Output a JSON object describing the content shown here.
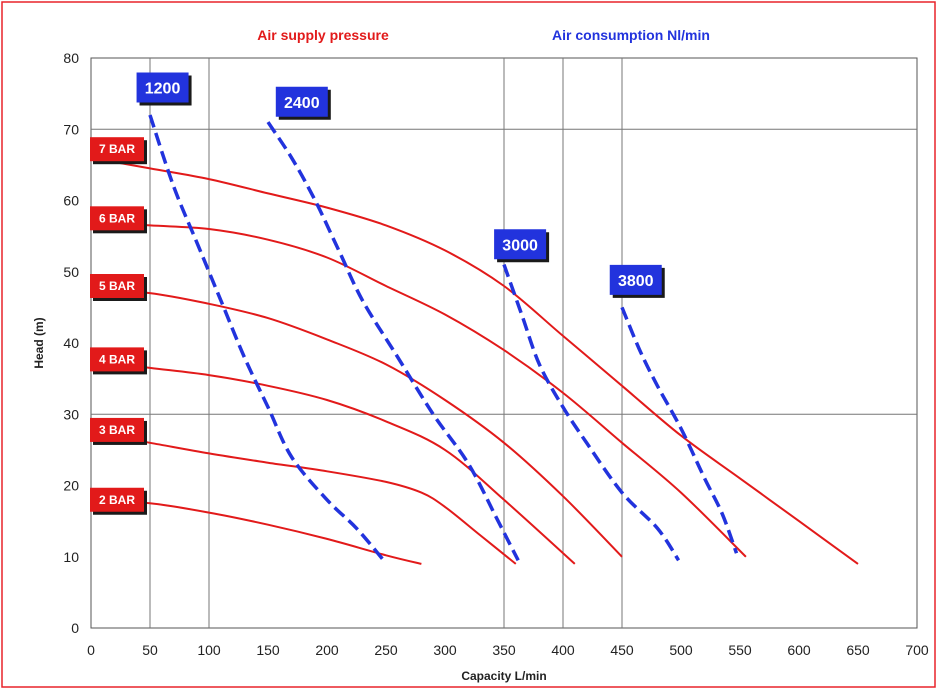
{
  "chart_data": {
    "type": "line",
    "title_pressure": "Air supply pressure",
    "title_consumption": "Air consumption Nl/min",
    "xlabel": "Capacity L/min",
    "ylabel": "Head (m)",
    "xlim": [
      0,
      700
    ],
    "ylim": [
      0,
      80
    ],
    "x_ticks": [
      "0",
      "50",
      "100",
      "150",
      "200",
      "250",
      "300",
      "350",
      "400",
      "450",
      "500",
      "550",
      "600",
      "650",
      "700"
    ],
    "y_ticks": [
      "0",
      "10",
      "20",
      "30",
      "40",
      "50",
      "60",
      "70",
      "80"
    ],
    "grid": {
      "vertical": [
        50,
        100,
        350,
        400,
        450
      ],
      "horizontal": [
        30,
        70
      ]
    },
    "colors": {
      "pressure": "#e21a1a",
      "consumption": "#2233dd",
      "frame": "#e8232a"
    },
    "pressure_series": [
      {
        "name": "2 BAR",
        "x": [
          0,
          50,
          100,
          150,
          200,
          250,
          280
        ],
        "y": [
          18,
          17.5,
          16.2,
          14.5,
          12.5,
          10.2,
          9
        ]
      },
      {
        "name": "3 BAR",
        "x": [
          0,
          50,
          100,
          150,
          200,
          250,
          280,
          300,
          330,
          360
        ],
        "y": [
          27.5,
          26,
          24.5,
          23.2,
          22,
          20.5,
          19,
          17,
          13,
          9
        ]
      },
      {
        "name": "4 BAR",
        "x": [
          0,
          50,
          100,
          150,
          200,
          250,
          300,
          350,
          410
        ],
        "y": [
          37.5,
          36.5,
          35.5,
          34,
          32,
          29,
          25,
          18,
          9
        ]
      },
      {
        "name": "5 BAR",
        "x": [
          0,
          50,
          100,
          150,
          200,
          250,
          300,
          350,
          400,
          450
        ],
        "y": [
          47.5,
          47,
          45.5,
          43.5,
          40.5,
          37,
          32,
          26,
          18.5,
          10
        ]
      },
      {
        "name": "6 BAR",
        "x": [
          0,
          50,
          100,
          150,
          200,
          250,
          300,
          350,
          400,
          450,
          500,
          555
        ],
        "y": [
          57,
          56.5,
          56,
          54.5,
          52,
          48,
          44,
          39,
          33,
          26,
          19,
          10
        ]
      },
      {
        "name": "7 BAR",
        "x": [
          0,
          50,
          100,
          150,
          200,
          250,
          300,
          350,
          400,
          450,
          500,
          550,
          600,
          650
        ],
        "y": [
          66,
          64.5,
          63,
          61,
          59,
          56.5,
          53,
          48,
          41,
          34,
          27,
          21,
          15,
          9
        ]
      }
    ],
    "consumption_series": [
      {
        "name": "1200",
        "x": [
          50,
          70,
          90,
          110,
          130,
          150,
          170,
          200,
          225,
          248
        ],
        "y": [
          72,
          62,
          54,
          46,
          38,
          31,
          24,
          18,
          14,
          9.5
        ]
      },
      {
        "name": "2400",
        "x": [
          150,
          170,
          190,
          210,
          230,
          260,
          290,
          320,
          345,
          362
        ],
        "y": [
          71,
          66,
          60,
          53,
          46,
          38,
          30,
          23,
          15,
          9.5
        ]
      },
      {
        "name": "3000",
        "x": [
          350,
          365,
          380,
          400,
          420,
          450,
          480,
          498
        ],
        "y": [
          51,
          44,
          37,
          31,
          26,
          19,
          14,
          9.5
        ]
      },
      {
        "name": "3800",
        "x": [
          450,
          465,
          480,
          500,
          520,
          535,
          547
        ],
        "y": [
          45,
          39,
          34,
          28,
          21,
          16,
          10.5
        ]
      }
    ],
    "pressure_labels": [
      {
        "text": "2 BAR",
        "y": 18
      },
      {
        "text": "3 BAR",
        "y": 27.8
      },
      {
        "text": "4 BAR",
        "y": 37.7
      },
      {
        "text": "5 BAR",
        "y": 48
      },
      {
        "text": "6 BAR",
        "y": 57.5
      },
      {
        "text": "7 BAR",
        "y": 67.2
      }
    ],
    "consumption_labels": [
      {
        "text": "1200",
        "x": 42,
        "y": 76
      },
      {
        "text": "2400",
        "x": 160,
        "y": 74
      },
      {
        "text": "3000",
        "x": 345,
        "y": 54
      },
      {
        "text": "3800",
        "x": 443,
        "y": 49
      }
    ]
  }
}
